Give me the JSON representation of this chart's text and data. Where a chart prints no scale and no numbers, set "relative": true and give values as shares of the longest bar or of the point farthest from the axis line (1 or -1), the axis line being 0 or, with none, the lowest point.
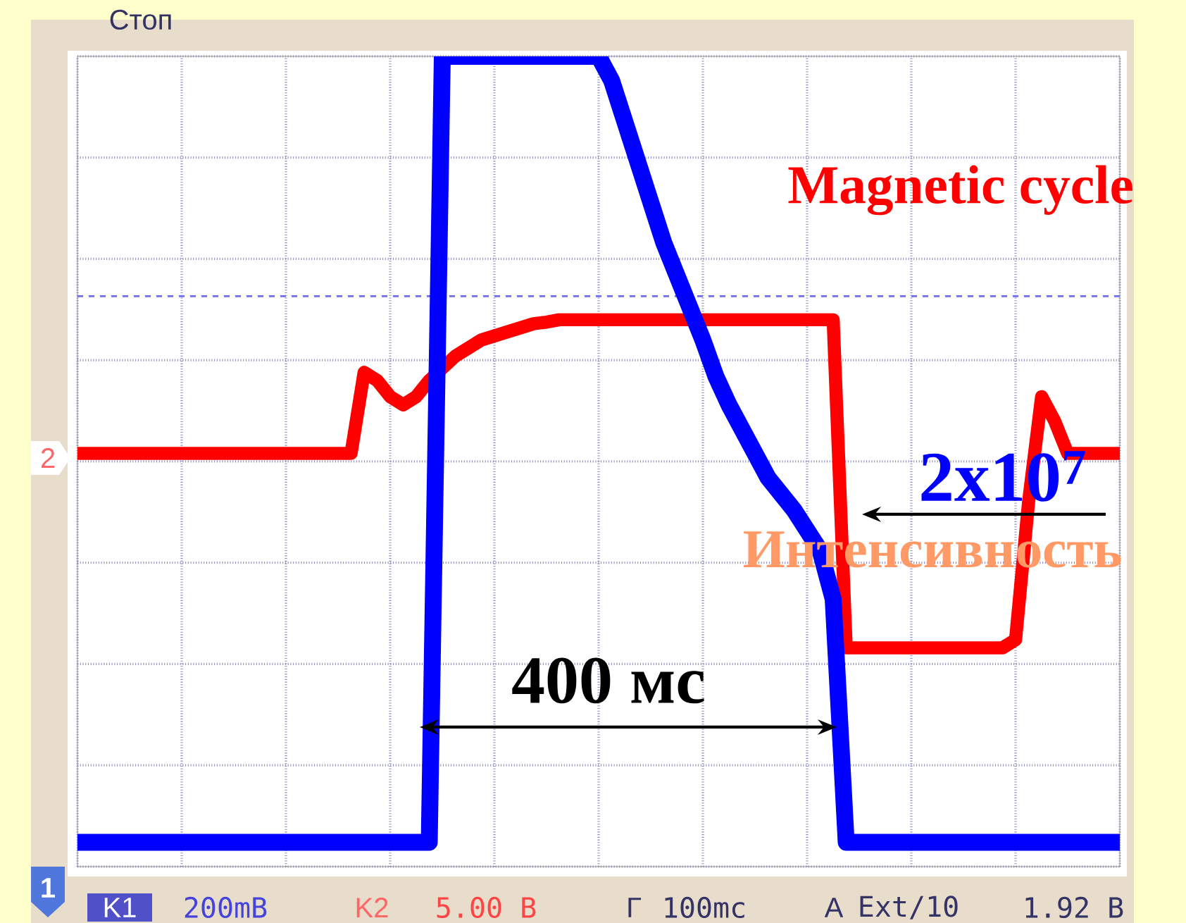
{
  "chart_data": {
    "type": "line",
    "relative": true,
    "grid": true,
    "categories": [
      null,
      null,
      null,
      null,
      null,
      null,
      null,
      null,
      null,
      null,
      null,
      null,
      null,
      null,
      null,
      null,
      null,
      null,
      null,
      null,
      null,
      null,
      null,
      null,
      null,
      null,
      null,
      null,
      null,
      null,
      null,
      null,
      null,
      null,
      null,
      null,
      null,
      null,
      null,
      null,
      null,
      null,
      null,
      null,
      null,
      null,
      null,
      null,
      null,
      null,
      null,
      null,
      null,
      null,
      null,
      null,
      null,
      null,
      null,
      null,
      null,
      null,
      null,
      null,
      null,
      null,
      null,
      null,
      null,
      null,
      null,
      null,
      null,
      null,
      null,
      null,
      null,
      null,
      null,
      null,
      null
    ],
    "series": [
      {
        "name": "Magnetic cycle",
        "color": "#ff0000",
        "values": [
          0.51,
          0.51,
          0.51,
          0.51,
          0.51,
          0.51,
          0.51,
          0.51,
          0.51,
          0.51,
          0.51,
          0.51,
          0.51,
          0.51,
          0.51,
          0.51,
          0.51,
          0.51,
          0.51,
          0.51,
          0.51,
          0.51,
          0.61,
          0.6,
          0.58,
          0.57,
          0.58,
          0.6,
          0.615,
          0.63,
          0.64,
          0.65,
          0.655,
          0.66,
          0.665,
          0.67,
          0.672,
          0.675,
          0.675,
          0.675,
          0.675,
          0.675,
          0.675,
          0.675,
          0.675,
          0.675,
          0.675,
          0.675,
          0.675,
          0.675,
          0.675,
          0.675,
          0.675,
          0.675,
          0.675,
          0.675,
          0.675,
          0.675,
          0.675,
          0.27,
          0.27,
          0.27,
          0.27,
          0.27,
          0.27,
          0.27,
          0.27,
          0.27,
          0.27,
          0.27,
          0.27,
          0.27,
          0.28,
          0.45,
          0.58,
          0.55,
          0.51,
          0.51,
          0.51,
          0.51,
          0.51
        ]
      },
      {
        "color": "#0000ff",
        "values": [
          0.03,
          0.03,
          0.03,
          0.03,
          0.03,
          0.03,
          0.03,
          0.03,
          0.03,
          0.03,
          0.03,
          0.03,
          0.03,
          0.03,
          0.03,
          0.03,
          0.03,
          0.03,
          0.03,
          0.03,
          0.03,
          0.03,
          0.03,
          0.03,
          0.03,
          0.03,
          0.03,
          0.03,
          1,
          1,
          1,
          1,
          1,
          1,
          1,
          1,
          1,
          1,
          1,
          1,
          1,
          0.97,
          0.92,
          0.87,
          0.82,
          0.77,
          0.73,
          0.69,
          0.65,
          0.605,
          0.57,
          0.54,
          0.51,
          0.48,
          0.46,
          0.44,
          0.415,
          0.39,
          0.33,
          0.03,
          0.03,
          0.03,
          0.03,
          0.03,
          0.03,
          0.03,
          0.03,
          0.03,
          0.03,
          0.03,
          0.03,
          0.03,
          0.03,
          0.03,
          0.03,
          0.03,
          0.03,
          0.03,
          0.03,
          0.03,
          0.03
        ]
      }
    ],
    "ref_lines": [
      {
        "axis": "y",
        "value": 0.704,
        "color": "#6e6ef0",
        "line_style": "dashed"
      }
    ],
    "annotations": [
      "2x10$^{7}$",
      "Интенсивность",
      "400 мс",
      "Стоп",
      "1",
      "2",
      "K1",
      "200mВ",
      "K2",
      "5.00 В",
      "Г",
      "100mс",
      "A",
      "Ext/10",
      "1.92 В"
    ]
  }
}
